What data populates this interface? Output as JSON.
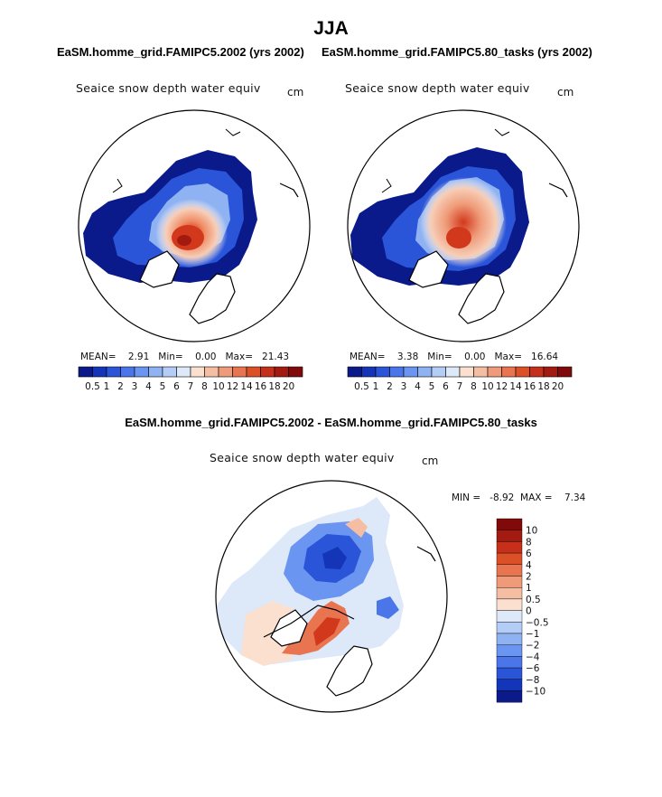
{
  "page_title": "JJA",
  "panel_left": {
    "title": "EaSM.homme_grid.FAMIPC5.2002 (yrs 2002)",
    "field_label": "Seaice snow depth water equiv",
    "unit": "cm",
    "stats": {
      "mean_label": "MEAN=",
      "mean": "2.91",
      "min_label": "Min=",
      "min": "0.00",
      "max_label": "Max=",
      "max": "21.43"
    }
  },
  "panel_right": {
    "title": "EaSM.homme_grid.FAMIPC5.80_tasks (yrs 2002)",
    "field_label": "Seaice snow depth water equiv",
    "unit": "cm",
    "stats": {
      "mean_label": "MEAN=",
      "mean": "3.38",
      "min_label": "Min=",
      "min": "0.00",
      "max_label": "Max=",
      "max": "16.64"
    }
  },
  "panel_diff": {
    "title": "EaSM.homme_grid.FAMIPC5.2002 - EaSM.homme_grid.FAMIPC5.80_tasks",
    "field_label": "Seaice snow depth water equiv",
    "unit": "cm",
    "stats": {
      "min_label": "MIN =",
      "min": "-8.92",
      "max_label": "MAX =",
      "max": "7.34"
    }
  },
  "chart_data": [
    {
      "type": "heatmap",
      "title": "EaSM.homme_grid.FAMIPC5.2002 (yrs 2002)",
      "variable": "Seaice snow depth water equiv",
      "units": "cm",
      "projection": "north polar stereographic",
      "mean": 2.91,
      "min": 0.0,
      "max": 21.43,
      "colorbar_levels": [
        "0.5",
        "1",
        "2",
        "3",
        "4",
        "5",
        "6",
        "7",
        "8",
        "10",
        "12",
        "14",
        "16",
        "18",
        "20"
      ],
      "colorbar_colors": [
        "#0a1a8a",
        "#1535b8",
        "#2a55d8",
        "#4a76ea",
        "#6a95f0",
        "#8fb2f3",
        "#b4cdf6",
        "#dde8f8",
        "#fbe0d0",
        "#f5bda2",
        "#ef9a78",
        "#e97550",
        "#dc5028",
        "#c6301a",
        "#a31a10",
        "#800a0a"
      ]
    },
    {
      "type": "heatmap",
      "title": "EaSM.homme_grid.FAMIPC5.80_tasks (yrs 2002)",
      "variable": "Seaice snow depth water equiv",
      "units": "cm",
      "projection": "north polar stereographic",
      "mean": 3.38,
      "min": 0.0,
      "max": 16.64,
      "colorbar_levels": [
        "0.5",
        "1",
        "2",
        "3",
        "4",
        "5",
        "6",
        "7",
        "8",
        "10",
        "12",
        "14",
        "16",
        "18",
        "20"
      ],
      "colorbar_colors": [
        "#0a1a8a",
        "#1535b8",
        "#2a55d8",
        "#4a76ea",
        "#6a95f0",
        "#8fb2f3",
        "#b4cdf6",
        "#dde8f8",
        "#fbe0d0",
        "#f5bda2",
        "#ef9a78",
        "#e97550",
        "#dc5028",
        "#c6301a",
        "#a31a10",
        "#800a0a"
      ]
    },
    {
      "type": "heatmap",
      "title": "EaSM.homme_grid.FAMIPC5.2002 - EaSM.homme_grid.FAMIPC5.80_tasks",
      "variable": "Seaice snow depth water equiv",
      "units": "cm",
      "projection": "north polar stereographic",
      "min": -8.92,
      "max": 7.34,
      "colorbar_levels": [
        "10",
        "8",
        "6",
        "4",
        "2",
        "1",
        "0.5",
        "0",
        "−0.5",
        "−1",
        "−2",
        "−4",
        "−6",
        "−8",
        "−10"
      ],
      "colorbar_colors": [
        "#800a0a",
        "#a31a10",
        "#c6301a",
        "#dc5028",
        "#e97550",
        "#ef9a78",
        "#f5bda2",
        "#fbe0d0",
        "#dde8f8",
        "#b4cdf6",
        "#8fb2f3",
        "#6a95f0",
        "#4a76ea",
        "#2a55d8",
        "#1535b8",
        "#0a1a8a"
      ]
    }
  ]
}
